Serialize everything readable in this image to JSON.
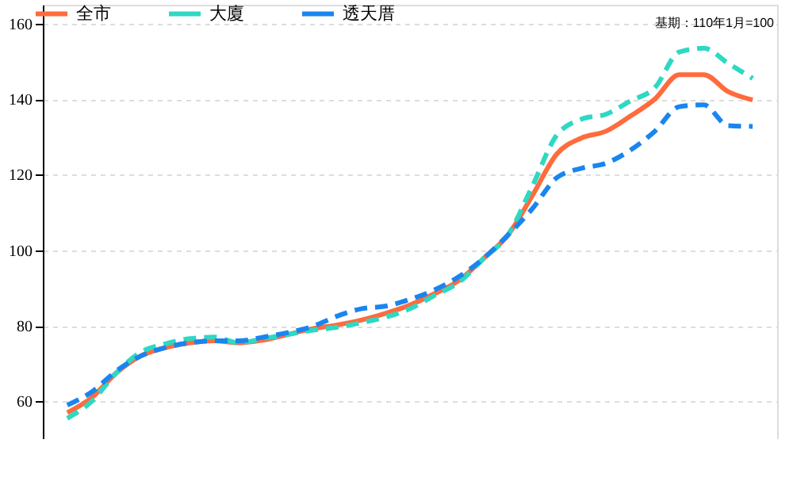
{
  "chart_data": {
    "type": "line",
    "categories": [
      null,
      null,
      null,
      null,
      null,
      null,
      null,
      null,
      null,
      null,
      null,
      null,
      null,
      null,
      null,
      null,
      null,
      null,
      null,
      null,
      null,
      null,
      null,
      null,
      null,
      null,
      null,
      null,
      null
    ],
    "series": [
      {
        "name": "全市",
        "color": "#ff6b3d",
        "line_style": "solid",
        "values": [
          57,
          61,
          67.5,
          72,
          74.2,
          75.5,
          76,
          75.5,
          76.2,
          77.7,
          79.2,
          80.2,
          81.5,
          83.3,
          85.5,
          88.5,
          92,
          97.8,
          104,
          114.5,
          125.5,
          129.7,
          131.5,
          135.5,
          140,
          146.5,
          146.5,
          142,
          139.8
        ]
      },
      {
        "name": "大廈",
        "color": "#2ed8c3",
        "line_style": "dashed",
        "values": [
          55.5,
          60,
          67.5,
          73,
          75.2,
          76.6,
          77,
          75.5,
          76.6,
          77.7,
          78.8,
          79.6,
          80.8,
          82.3,
          84.5,
          88,
          91.5,
          97.8,
          104,
          117,
          130.5,
          134.7,
          136,
          139.5,
          143,
          152.5,
          153.5,
          149.5,
          145.5
        ]
      },
      {
        "name": "透天厝",
        "color": "#1a85f0",
        "line_style": "dashed",
        "values": [
          59,
          62.5,
          68,
          72,
          74.2,
          75.5,
          76,
          76,
          77,
          78.2,
          79.8,
          82.5,
          84.5,
          85.2,
          87,
          89.5,
          93,
          97.8,
          104,
          111,
          119.2,
          121.7,
          123,
          126.5,
          131.5,
          138,
          138.5,
          133,
          132.8
        ]
      }
    ],
    "ylim": [
      50,
      165
    ],
    "yticks": [
      60,
      80,
      100,
      120,
      140,
      160
    ],
    "grid": "y",
    "legend": "top left",
    "tick_labels": "y",
    "marker": "none",
    "annotations": [
      "基期：110年1月=100"
    ]
  }
}
